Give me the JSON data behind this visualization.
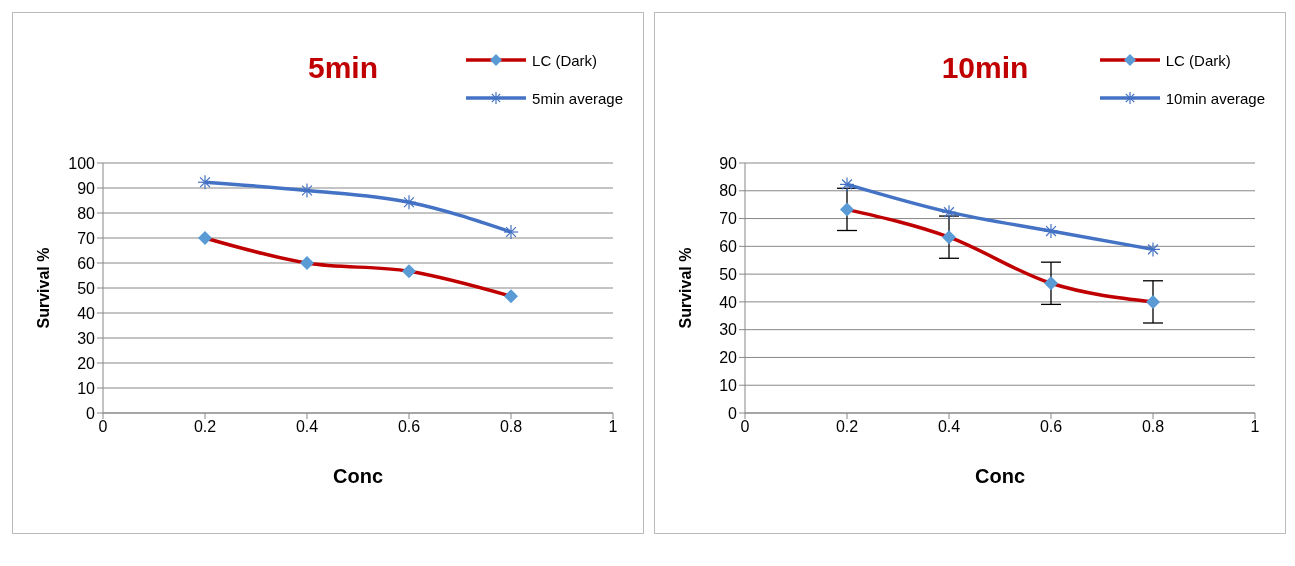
{
  "chart_data": [
    {
      "type": "line",
      "title": "5min",
      "xlabel": "Conc",
      "ylabel": "Survival %",
      "x": [
        0.2,
        0.4,
        0.6,
        0.8
      ],
      "series": [
        {
          "name": "LC (Dark)",
          "color": "#c00000",
          "marker": "diamond",
          "values": [
            70,
            60,
            56.7,
            46.7
          ]
        },
        {
          "name": "5min average",
          "color": "#4472c4",
          "marker": "cross",
          "values": [
            92.3,
            89,
            84.3,
            72.4
          ]
        }
      ],
      "xlim": [
        0,
        1
      ],
      "xticks": [
        0,
        0.2,
        0.4,
        0.6,
        0.8,
        1
      ],
      "ylim": [
        0,
        100
      ],
      "yticks": [
        0,
        10,
        20,
        30,
        40,
        50,
        60,
        70,
        80,
        90,
        100
      ],
      "grid": "y",
      "legend": "top right"
    },
    {
      "type": "line",
      "title": "10min",
      "xlabel": "Conc",
      "ylabel": "Survival %",
      "x": [
        0.2,
        0.4,
        0.6,
        0.8
      ],
      "series": [
        {
          "name": "LC (Dark)",
          "color": "#c00000",
          "marker": "diamond",
          "values": [
            73.3,
            63.3,
            46.7,
            40
          ],
          "errors": [
            7.6,
            7.6,
            7.6,
            7.6
          ]
        },
        {
          "name": "10min average",
          "color": "#4472c4",
          "marker": "cross",
          "values": [
            82.3,
            72.3,
            65.5,
            58.9
          ]
        }
      ],
      "xlim": [
        0,
        1
      ],
      "xticks": [
        0,
        0.2,
        0.4,
        0.6,
        0.8,
        1
      ],
      "ylim": [
        0,
        90
      ],
      "yticks": [
        0,
        10,
        20,
        30,
        40,
        50,
        60,
        70,
        80,
        90
      ],
      "grid": "y",
      "legend": "top right"
    }
  ]
}
